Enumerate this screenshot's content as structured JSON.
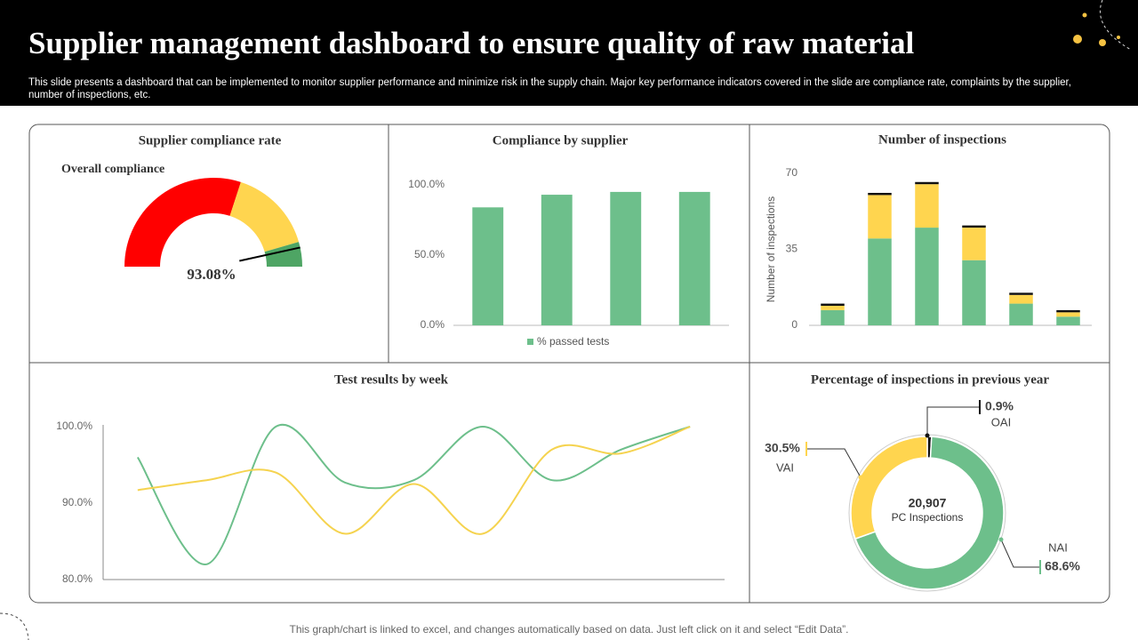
{
  "header": {
    "title": "Supplier management dashboard to ensure quality of raw material",
    "description": "This slide presents a dashboard that can be implemented to monitor supplier performance and minimize risk in the supply chain. Major key performance indicators covered in the slide are compliance rate, complaints by the supplier, number of inspections, etc."
  },
  "footer": "This graph/chart is linked to excel, and changes automatically based on data. Just left click on it and select “Edit Data”.",
  "chart_data": [
    {
      "type": "gauge",
      "title": "Supplier compliance rate",
      "subtitle": "Overall compliance",
      "value": 93.08,
      "value_label": "93.08%",
      "ylim": [
        0,
        100
      ],
      "bands": [
        {
          "from": 0,
          "to": 60,
          "color": "#ff0000"
        },
        {
          "from": 60,
          "to": 91,
          "color": "#ffd54f"
        },
        {
          "from": 91,
          "to": 100,
          "color": "#4ea564"
        }
      ]
    },
    {
      "type": "bar",
      "title": "Compliance by supplier",
      "categories": [
        null,
        null,
        null,
        null
      ],
      "series": [
        {
          "name": "% passed tests",
          "color": "#6dbf8b",
          "values": [
            84,
            93,
            95,
            95
          ]
        }
      ],
      "ylim": [
        0,
        100
      ],
      "yticks": [
        {
          "value": 0,
          "label": "0.0%"
        },
        {
          "value": 50,
          "label": "50.0%"
        },
        {
          "value": 100,
          "label": "100.0%"
        }
      ],
      "legend": "bottom"
    },
    {
      "type": "bar",
      "stacked": true,
      "title": "Number of inspections",
      "ylabel": "Number of inspections",
      "categories": [
        null,
        null,
        null,
        null,
        null,
        null
      ],
      "series": [
        {
          "color": "#6dbf8b",
          "values": [
            7,
            40,
            45,
            30,
            10,
            4
          ]
        },
        {
          "color": "#ffd54f",
          "values": [
            2,
            20,
            20,
            15,
            4,
            2
          ]
        },
        {
          "color": "#111111",
          "values": [
            1,
            1,
            1,
            1,
            1,
            1
          ]
        }
      ],
      "ylim": [
        0,
        70
      ],
      "yticks": [
        0,
        35,
        70
      ]
    },
    {
      "type": "line",
      "title": "Test results by week",
      "categories": [
        null,
        null,
        null,
        null,
        null,
        null,
        null,
        null,
        null
      ],
      "series": [
        {
          "color": "#6dbf8b",
          "values": [
            96,
            82,
            100,
            92.7,
            93,
            100,
            93,
            97,
            100
          ]
        },
        {
          "color": "#f5d34f",
          "values": [
            91.7,
            93,
            94,
            86,
            92.5,
            86,
            97,
            96.5,
            100
          ]
        }
      ],
      "ylim": [
        80,
        100
      ],
      "yticks": [
        {
          "value": 80,
          "label": "80.0%"
        },
        {
          "value": 90,
          "label": "90.0%"
        },
        {
          "value": 100,
          "label": "100.0%"
        }
      ]
    },
    {
      "type": "donut",
      "title": "Percentage of inspections in previous year",
      "categories": [
        "OAI",
        "NAI",
        "VAI"
      ],
      "values": [
        0.9,
        68.6,
        30.5
      ],
      "value_labels": [
        "0.9%",
        "68.6%",
        "30.5%"
      ],
      "colors": [
        "#111111",
        "#6dbf8b",
        "#ffd54f"
      ],
      "total": {
        "value": 20907,
        "label": "20,907"
      },
      "total_caption": "PC Inspections"
    }
  ]
}
